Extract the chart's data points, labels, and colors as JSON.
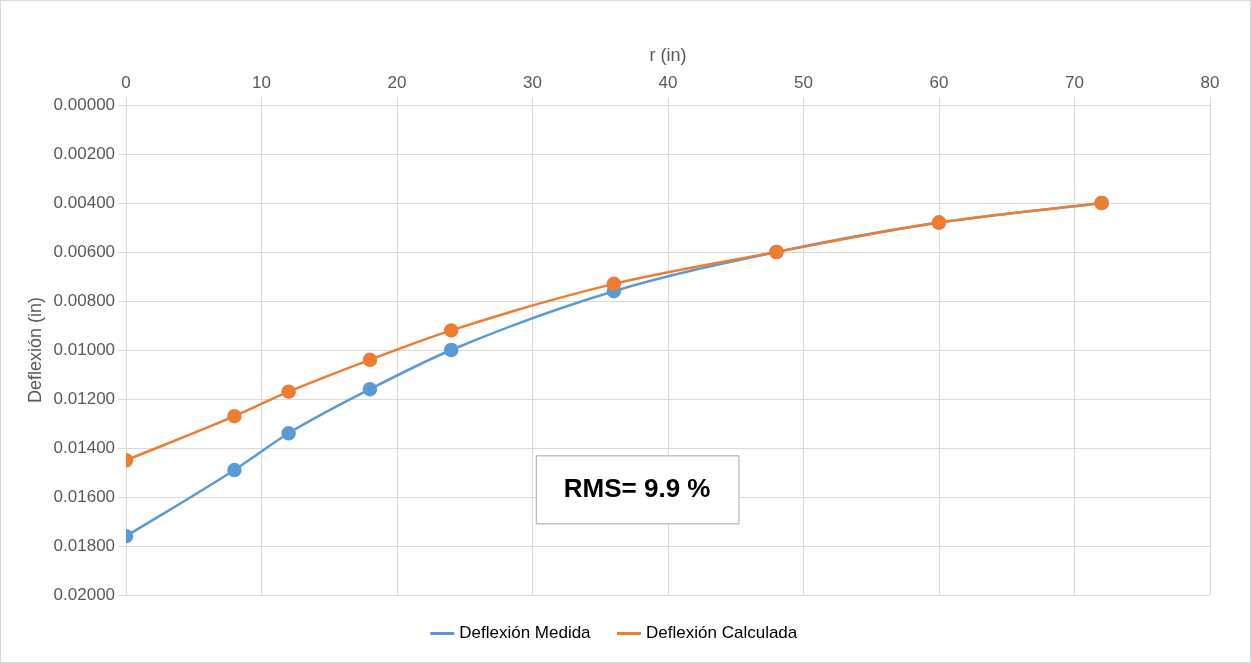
{
  "chart_data": {
    "type": "line",
    "xlabel": "r (in)",
    "ylabel": "Deflexión (in)",
    "x": [
      0,
      8,
      12,
      18,
      24,
      36,
      48,
      60,
      72
    ],
    "series": [
      {
        "name": "Deflexión Medida",
        "color": "#5b9bd5",
        "values": [
          0.0176,
          0.0149,
          0.0134,
          0.0116,
          0.01,
          0.0076,
          0.006,
          0.0048,
          0.004
        ]
      },
      {
        "name": "Deflexión Calculada",
        "color": "#ed7d31",
        "values": [
          0.0145,
          0.0127,
          0.0117,
          0.0104,
          0.0092,
          0.0073,
          0.006,
          0.0048,
          0.004
        ]
      }
    ],
    "xlim": [
      0,
      80
    ],
    "xticks": [
      0,
      10,
      20,
      30,
      40,
      50,
      60,
      70,
      80
    ],
    "ylim": [
      0.02,
      0
    ],
    "yticks": [
      {
        "value": 0,
        "label": "0.00000"
      },
      {
        "value": 0.002,
        "label": "0.00200"
      },
      {
        "value": 0.004,
        "label": "0.00400"
      },
      {
        "value": 0.006,
        "label": "0.00600"
      },
      {
        "value": 0.008,
        "label": "0.00800"
      },
      {
        "value": 0.01,
        "label": "0.01000"
      },
      {
        "value": 0.012,
        "label": "0.01200"
      },
      {
        "value": 0.014,
        "label": "0.01400"
      },
      {
        "value": 0.016,
        "label": "0.01600"
      },
      {
        "value": 0.018,
        "label": "0.01800"
      },
      {
        "value": 0.02,
        "label": "0.02000"
      }
    ],
    "grid": true,
    "legend": "bottom",
    "marker": "circle",
    "line_style": "solid",
    "annotations": [
      "RMS= 9.9 %"
    ]
  }
}
